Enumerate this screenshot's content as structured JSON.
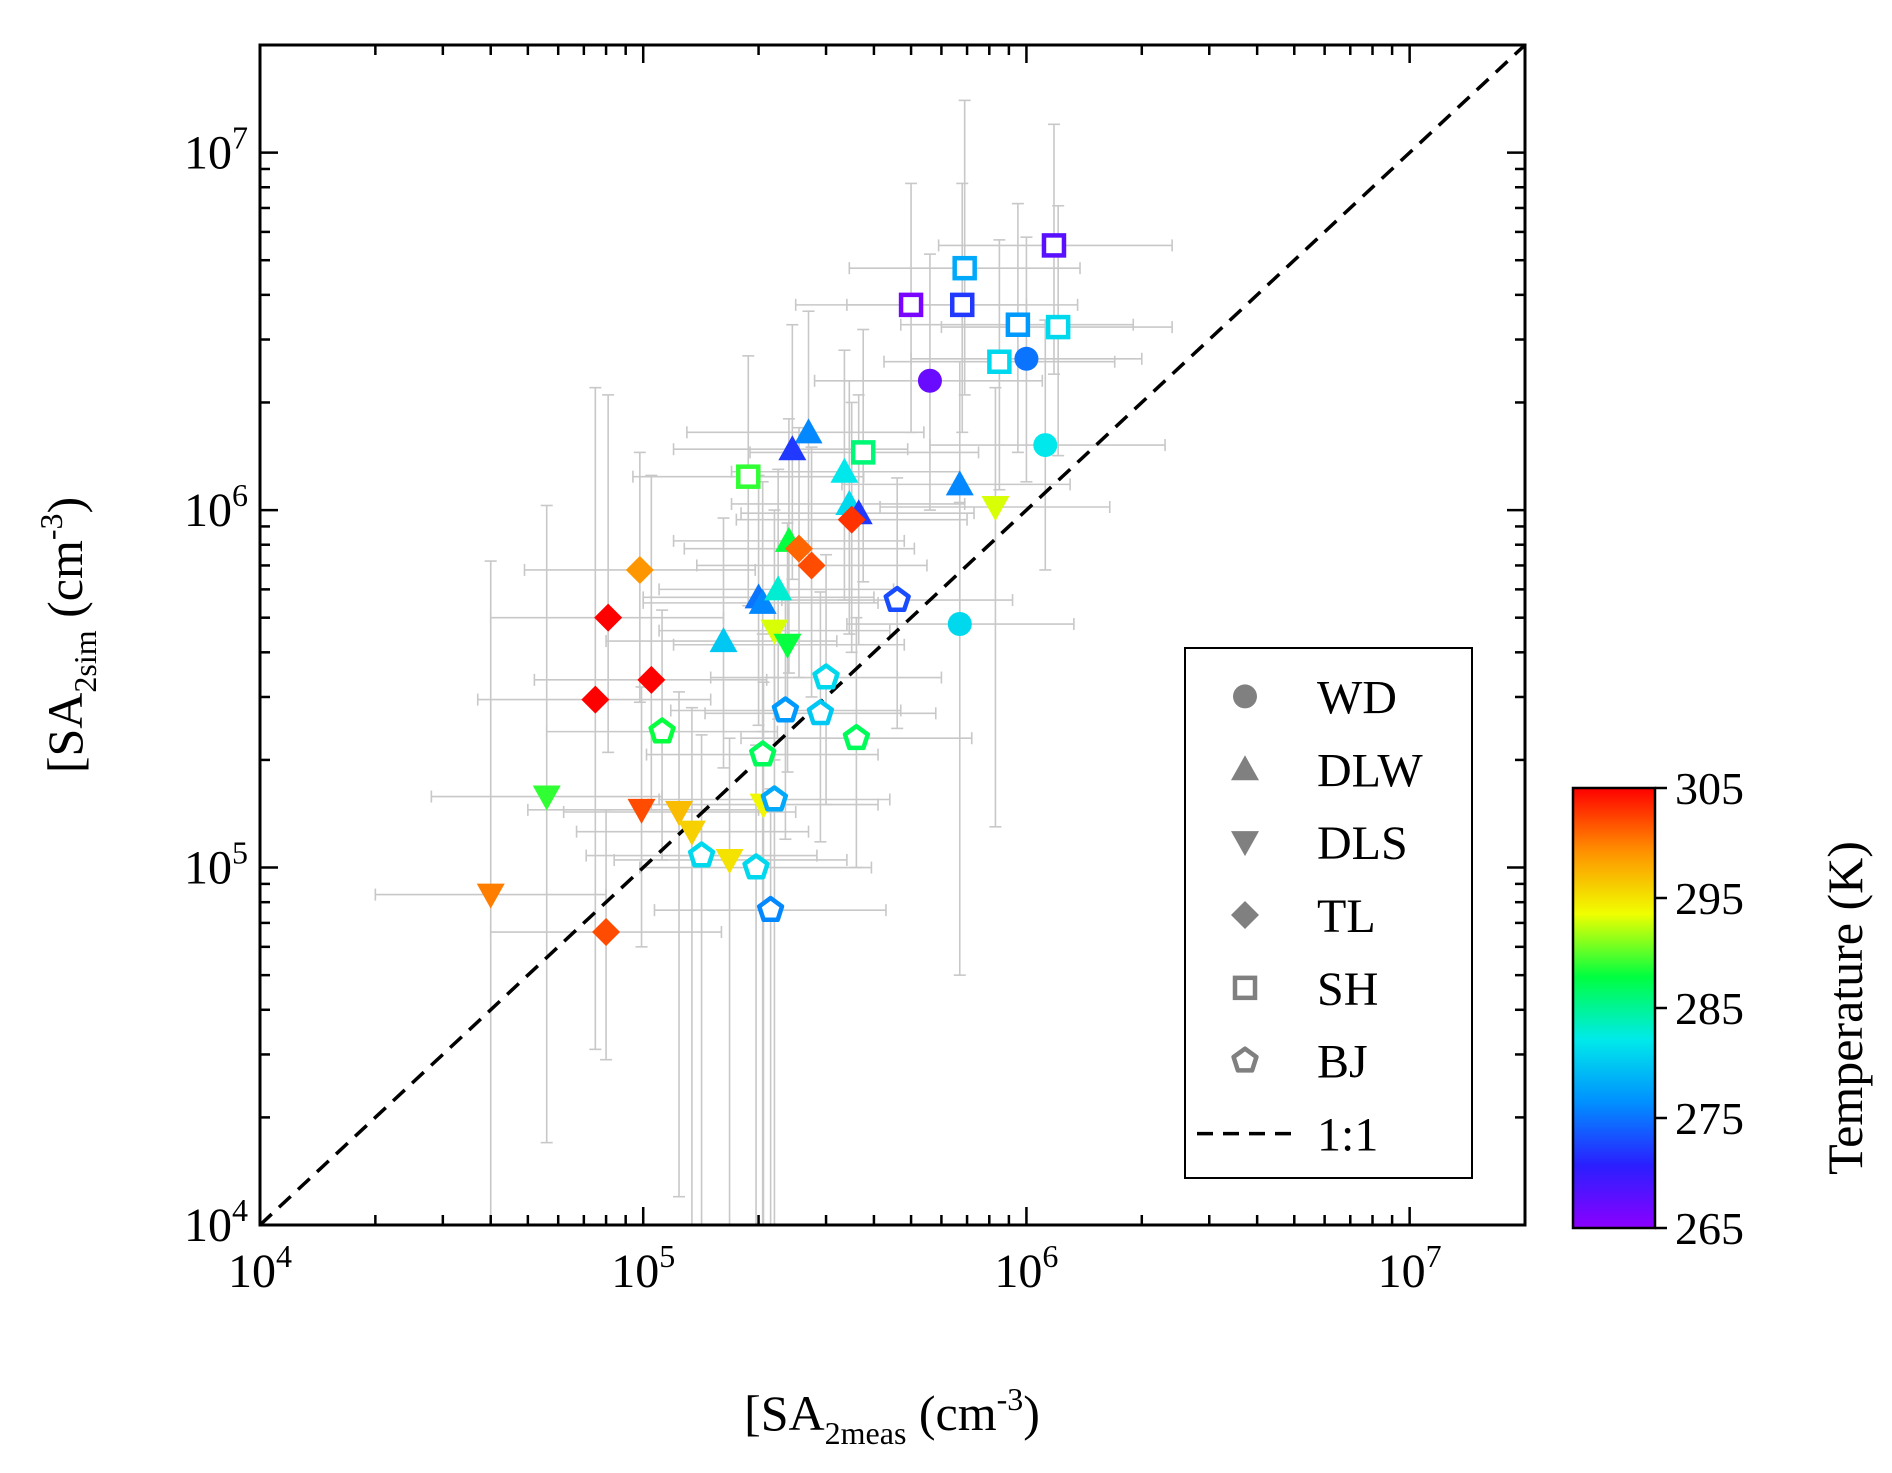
{
  "chart_data": {
    "type": "scatter",
    "xlabel": {
      "base": "[SA",
      "sub1": "2",
      "sub2": "meas",
      "unit": " (cm",
      "exp": "-3",
      "close": ")"
    },
    "ylabel": {
      "base": "[SA",
      "sub1": "2",
      "sub2": "sim",
      "unit": " (cm",
      "exp": "-3",
      "close": ")"
    },
    "x_scale": "log",
    "y_scale": "log",
    "xlim": [
      10000,
      20000000
    ],
    "ylim": [
      10000,
      20000000
    ],
    "x_ticks": [
      {
        "value": 10000,
        "base": "10",
        "exp": "4"
      },
      {
        "value": 100000,
        "base": "10",
        "exp": "5"
      },
      {
        "value": 1000000,
        "base": "10",
        "exp": "6"
      },
      {
        "value": 10000000,
        "base": "10",
        "exp": "7"
      }
    ],
    "y_ticks": [
      {
        "value": 10000,
        "base": "10",
        "exp": "4"
      },
      {
        "value": 100000,
        "base": "10",
        "exp": "5"
      },
      {
        "value": 1000000,
        "base": "10",
        "exp": "6"
      },
      {
        "value": 10000000,
        "base": "10",
        "exp": "7"
      }
    ],
    "grid": false,
    "legend_position": "bottom-right",
    "legend": [
      {
        "label": "WD",
        "marker": "circle"
      },
      {
        "label": "DLW",
        "marker": "triangle-up"
      },
      {
        "label": "DLS",
        "marker": "triangle-down"
      },
      {
        "label": "TL",
        "marker": "diamond"
      },
      {
        "label": "SH",
        "marker": "square-open"
      },
      {
        "label": "BJ",
        "marker": "pentagon-open"
      },
      {
        "label": "1:1",
        "marker": "dashed-line"
      }
    ],
    "reference_line": {
      "label": "1:1",
      "style": "dashed",
      "color": "#000000"
    },
    "colorbar": {
      "label": "Temperature (K)",
      "min": 265,
      "max": 305,
      "ticks": [
        265,
        275,
        285,
        295,
        305
      ],
      "colormap": [
        "#8b00ff",
        "#2a1fff",
        "#0090ff",
        "#00eaea",
        "#00ff40",
        "#f0ff00",
        "#ff9000",
        "#ff0000"
      ]
    },
    "error_bar_color": "#c8c8c8",
    "series": [
      {
        "name": "WD",
        "marker": "circle",
        "points": [
          {
            "x": 560000,
            "y": 2300000,
            "temp": 267,
            "xerr": [
              280000,
              1100000
            ],
            "yerr": [
              1000000,
              5200000
            ]
          },
          {
            "x": 1000000,
            "y": 2650000,
            "temp": 275,
            "xerr": [
              500000,
              2000000
            ],
            "yerr": [
              1200000,
              5800000
            ]
          },
          {
            "x": 1120000,
            "y": 1520000,
            "temp": 282,
            "xerr": [
              560000,
              2300000
            ],
            "yerr": [
              680000,
              3400000
            ]
          },
          {
            "x": 670000,
            "y": 480000,
            "temp": 281,
            "xerr": [
              340000,
              1330000
            ],
            "yerr": [
              50000,
              1050000
            ]
          }
        ]
      },
      {
        "name": "DLW",
        "marker": "triangle-up",
        "points": [
          {
            "x": 270000,
            "y": 1650000,
            "temp": 276,
            "xerr": [
              130000,
              540000
            ],
            "yerr": [
              700000,
              3600000
            ]
          },
          {
            "x": 245000,
            "y": 1480000,
            "temp": 272,
            "xerr": [
              120000,
              490000
            ],
            "yerr": [
              640000,
              3300000
            ]
          },
          {
            "x": 335000,
            "y": 1280000,
            "temp": 282,
            "xerr": [
              170000,
              670000
            ],
            "yerr": [
              560000,
              2800000
            ]
          },
          {
            "x": 345000,
            "y": 1040000,
            "temp": 281,
            "xerr": [
              170000,
              690000
            ],
            "yerr": [
              450000,
              2300000
            ]
          },
          {
            "x": 365000,
            "y": 980000,
            "temp": 272,
            "xerr": [
              180000,
              730000
            ],
            "yerr": [
              420000,
              2100000
            ]
          },
          {
            "x": 670000,
            "y": 1180000,
            "temp": 276,
            "xerr": [
              330000,
              1300000
            ],
            "yerr": [
              510000,
              2600000
            ]
          },
          {
            "x": 240000,
            "y": 820000,
            "temp": 288,
            "xerr": [
              120000,
              480000
            ],
            "yerr": [
              350000,
              1800000
            ]
          },
          {
            "x": 200000,
            "y": 570000,
            "temp": 275,
            "xerr": [
              100000,
              400000
            ],
            "yerr": [
              250000,
              1250000
            ]
          },
          {
            "x": 205000,
            "y": 550000,
            "temp": 276,
            "xerr": [
              100000,
              410000
            ],
            "yerr": [
              240000,
              1200000
            ]
          },
          {
            "x": 225000,
            "y": 600000,
            "temp": 283,
            "xerr": [
              110000,
              450000
            ],
            "yerr": [
              260000,
              1300000
            ]
          },
          {
            "x": 162000,
            "y": 430000,
            "temp": 280,
            "xerr": [
              80000,
              320000
            ],
            "yerr": [
              190000,
              950000
            ]
          }
        ]
      },
      {
        "name": "DLS",
        "marker": "triangle-down",
        "points": [
          {
            "x": 830000,
            "y": 1020000,
            "temp": 293,
            "xerr": [
              415000,
              1650000
            ],
            "yerr": [
              130000,
              2200000
            ]
          },
          {
            "x": 220000,
            "y": 460000,
            "temp": 293,
            "xerr": [
              110000,
              440000
            ],
            "yerr": [
              200000,
              1000000
            ]
          },
          {
            "x": 238000,
            "y": 420000,
            "temp": 288,
            "xerr": [
              120000,
              480000
            ],
            "yerr": [
              185000,
              920000
            ]
          },
          {
            "x": 56000,
            "y": 158000,
            "temp": 289,
            "xerr": [
              28000,
              112000
            ],
            "yerr": [
              17000,
              1030000
            ]
          },
          {
            "x": 99000,
            "y": 145000,
            "temp": 302,
            "xerr": [
              50000,
              200000
            ],
            "yerr": [
              60000,
              320000
            ]
          },
          {
            "x": 124000,
            "y": 143000,
            "temp": 297,
            "xerr": [
              62000,
              250000
            ],
            "yerr": [
              12000,
              310000
            ]
          },
          {
            "x": 134000,
            "y": 126000,
            "temp": 296,
            "xerr": [
              67000,
              270000
            ],
            "yerr": [
              10000,
              280000
            ]
          },
          {
            "x": 168000,
            "y": 105000,
            "temp": 295,
            "xerr": [
              84000,
              340000
            ],
            "yerr": [
              10000,
              230000
            ]
          },
          {
            "x": 206000,
            "y": 150000,
            "temp": 294,
            "xerr": [
              103000,
              410000
            ],
            "yerr": [
              10000,
              330000
            ]
          },
          {
            "x": 40000,
            "y": 84000,
            "temp": 300,
            "xerr": [
              20000,
              80000
            ],
            "yerr": [
              10000,
              720000
            ]
          }
        ]
      },
      {
        "name": "TL",
        "marker": "diamond",
        "points": [
          {
            "x": 350000,
            "y": 940000,
            "temp": 303,
            "xerr": [
              175000,
              700000
            ],
            "yerr": [
              400000,
              2000000
            ]
          },
          {
            "x": 255000,
            "y": 780000,
            "temp": 301,
            "xerr": [
              128000,
              510000
            ],
            "yerr": [
              340000,
              1700000
            ]
          },
          {
            "x": 275000,
            "y": 700000,
            "temp": 302,
            "xerr": [
              138000,
              550000
            ],
            "yerr": [
              300000,
              1500000
            ]
          },
          {
            "x": 98000,
            "y": 680000,
            "temp": 299,
            "xerr": [
              49000,
              196000
            ],
            "yerr": [
              290000,
              1450000
            ]
          },
          {
            "x": 81000,
            "y": 500000,
            "temp": 305,
            "xerr": [
              40000,
              162000
            ],
            "yerr": [
              210000,
              2100000
            ]
          },
          {
            "x": 105000,
            "y": 335000,
            "temp": 305,
            "xerr": [
              52000,
              210000
            ],
            "yerr": [
              145000,
              1250000
            ]
          },
          {
            "x": 75000,
            "y": 295000,
            "temp": 305,
            "xerr": [
              37000,
              150000
            ],
            "yerr": [
              31000,
              2200000
            ]
          },
          {
            "x": 80000,
            "y": 66000,
            "temp": 302,
            "xerr": [
              40000,
              160000
            ],
            "yerr": [
              29000,
              145000
            ]
          }
        ]
      },
      {
        "name": "SH",
        "marker": "square-open",
        "points": [
          {
            "x": 1180000,
            "y": 5500000,
            "temp": 268,
            "xerr": [
              590000,
              2400000
            ],
            "yerr": [
              2400000,
              12000000
            ]
          },
          {
            "x": 690000,
            "y": 4750000,
            "temp": 278,
            "xerr": [
              345000,
              1380000
            ],
            "yerr": [
              2100000,
              14000000
            ]
          },
          {
            "x": 500000,
            "y": 3750000,
            "temp": 266,
            "xerr": [
              250000,
              1000000
            ],
            "yerr": [
              1650000,
              8200000
            ]
          },
          {
            "x": 680000,
            "y": 3750000,
            "temp": 272,
            "xerr": [
              340000,
              1360000
            ],
            "yerr": [
              1650000,
              8200000
            ]
          },
          {
            "x": 950000,
            "y": 3300000,
            "temp": 277,
            "xerr": [
              470000,
              1900000
            ],
            "yerr": [
              1450000,
              7200000
            ]
          },
          {
            "x": 1210000,
            "y": 3250000,
            "temp": 281,
            "xerr": [
              600000,
              2400000
            ],
            "yerr": [
              1420000,
              7100000
            ]
          },
          {
            "x": 850000,
            "y": 2600000,
            "temp": 281,
            "xerr": [
              425000,
              1700000
            ],
            "yerr": [
              1140000,
              5700000
            ]
          },
          {
            "x": 375000,
            "y": 1450000,
            "temp": 286,
            "xerr": [
              190000,
              750000
            ],
            "yerr": [
              630000,
              3200000
            ]
          },
          {
            "x": 188000,
            "y": 1240000,
            "temp": 289,
            "xerr": [
              94000,
              376000
            ],
            "yerr": [
              540000,
              2700000
            ]
          }
        ]
      },
      {
        "name": "BJ",
        "marker": "pentagon-open",
        "points": [
          {
            "x": 460000,
            "y": 560000,
            "temp": 273,
            "xerr": [
              230000,
              920000
            ],
            "yerr": [
              245000,
              1230000
            ]
          },
          {
            "x": 300000,
            "y": 340000,
            "temp": 281,
            "xerr": [
              150000,
              600000
            ],
            "yerr": [
              150000,
              750000
            ]
          },
          {
            "x": 235000,
            "y": 275000,
            "temp": 277,
            "xerr": [
              118000,
              470000
            ],
            "yerr": [
              120000,
              600000
            ]
          },
          {
            "x": 290000,
            "y": 270000,
            "temp": 280,
            "xerr": [
              145000,
              580000
            ],
            "yerr": [
              118000,
              590000
            ]
          },
          {
            "x": 112000,
            "y": 240000,
            "temp": 288,
            "xerr": [
              56000,
              224000
            ],
            "yerr": [
              105000,
              525000
            ]
          },
          {
            "x": 360000,
            "y": 230000,
            "temp": 287,
            "xerr": [
              180000,
              720000
            ],
            "yerr": [
              100000,
              500000
            ]
          },
          {
            "x": 205000,
            "y": 207000,
            "temp": 287,
            "xerr": [
              102000,
              410000
            ],
            "yerr": [
              10000,
              450000
            ]
          },
          {
            "x": 220000,
            "y": 155000,
            "temp": 278,
            "xerr": [
              110000,
              440000
            ],
            "yerr": [
              10000,
              340000
            ]
          },
          {
            "x": 142000,
            "y": 108000,
            "temp": 281,
            "xerr": [
              71000,
              284000
            ],
            "yerr": [
              10000,
              235000
            ]
          },
          {
            "x": 197000,
            "y": 100000,
            "temp": 281,
            "xerr": [
              98000,
              394000
            ],
            "yerr": [
              10000,
              220000
            ]
          },
          {
            "x": 215000,
            "y": 76000,
            "temp": 276,
            "xerr": [
              107000,
              430000
            ],
            "yerr": [
              10000,
              166000
            ]
          }
        ]
      }
    ]
  }
}
